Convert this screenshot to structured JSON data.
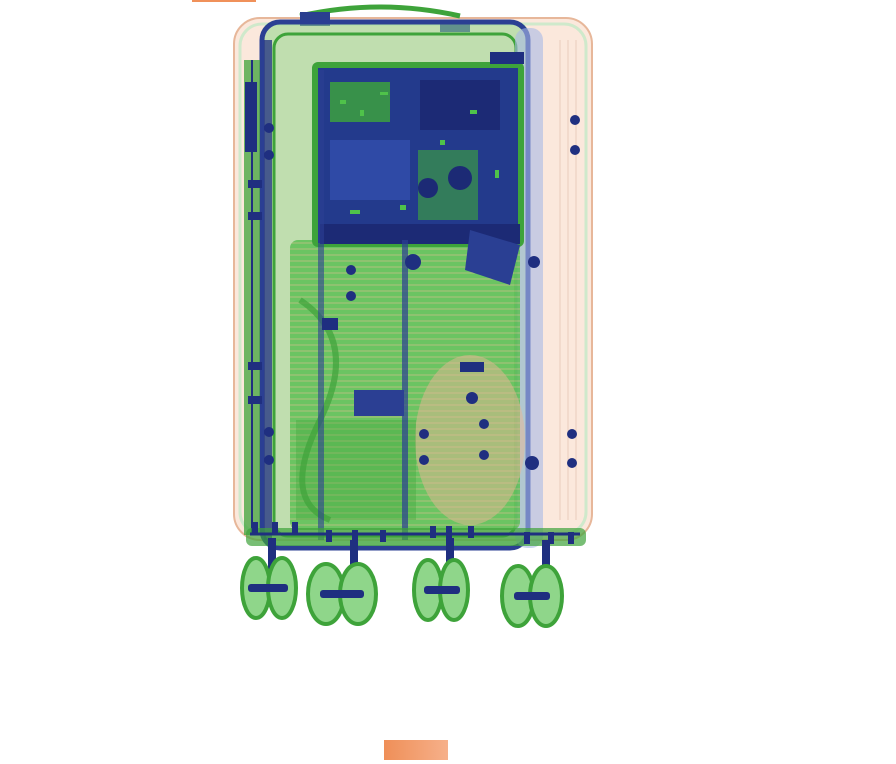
{
  "image": {
    "subject": "xray-scan-suitcase",
    "colors": {
      "organic": "#3fae3a",
      "organic_light": "#8fd68a",
      "metal": "#233a8c",
      "metal_dark": "#1c2a75",
      "skin": "#f3c3a6",
      "marker": "#f0915a",
      "background": "#ffffff"
    }
  }
}
